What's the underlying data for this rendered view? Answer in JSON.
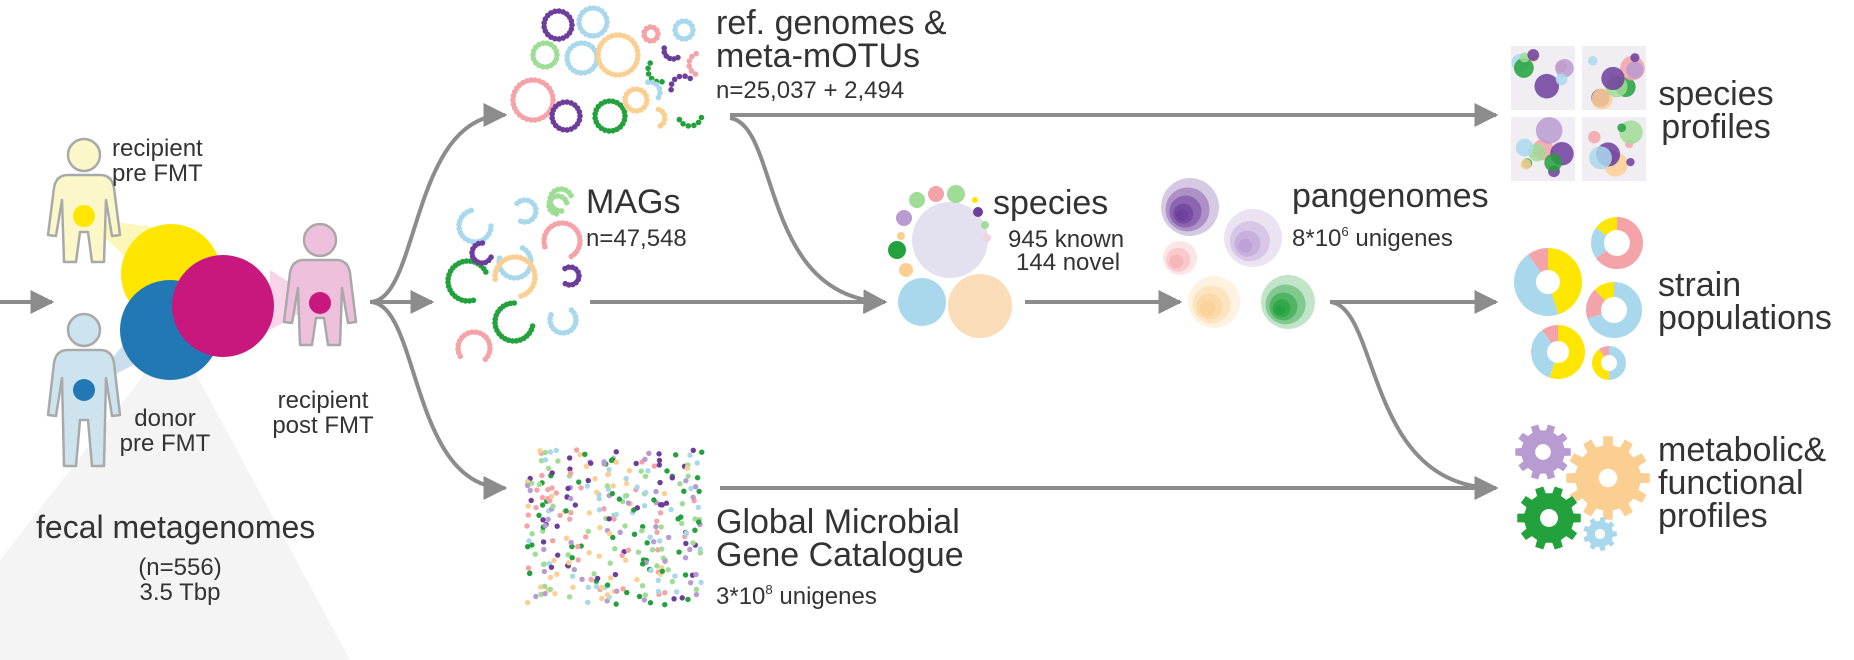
{
  "colors": {
    "arrow": "#8c8c8c",
    "body_recipient_pre": "#fbf7c8",
    "body_donor": "#cde4ef",
    "body_recipient_post": "#efc0dc",
    "body_outline": "#a9a9a9",
    "yellow": "#ffe600",
    "blue": "#2178b4",
    "magenta": "#c8187d",
    "light_blue": "#a9d8ec",
    "green": "#23a13c",
    "light_green": "#9fdc96",
    "purple": "#6d3d9c",
    "lavender": "#b89bd1",
    "pink": "#f4a3a8",
    "orange": "#fbcf92",
    "fan_gray": "#f4f4f4"
  },
  "left": {
    "recipient_pre": [
      "recipient",
      "pre FMT"
    ],
    "donor_pre": [
      "donor",
      "pre FMT"
    ],
    "recipient_post": [
      "recipient",
      "post FMT"
    ],
    "fecal_title": "fecal metagenomes",
    "fecal_n": "(n=556)",
    "fecal_size": "3.5 Tbp"
  },
  "middle": {
    "ref_title": [
      "ref. genomes &",
      "meta-mOTUs"
    ],
    "ref_n": "n=25,037 + 2,494",
    "mags_title": "MAGs",
    "mags_n": "n=47,548",
    "gmgc_title": [
      "Global Microbial",
      "Gene Catalogue"
    ],
    "gmgc_base": "3*10",
    "gmgc_exp": "8",
    "gmgc_unit": " unigenes"
  },
  "center": {
    "species_title": "species",
    "species_known": "945 known",
    "species_novel": "144 novel",
    "pangenomes_title": "pangenomes",
    "pangenomes_base": "8*10",
    "pangenomes_exp": "6",
    "pangenomes_unit": " unigenes"
  },
  "outputs": {
    "species_profiles": [
      "species",
      "profiles"
    ],
    "strain_populations": [
      "strain",
      "populations"
    ],
    "metabolic_profiles": [
      "metabolic&",
      "functional",
      "profiles"
    ]
  }
}
